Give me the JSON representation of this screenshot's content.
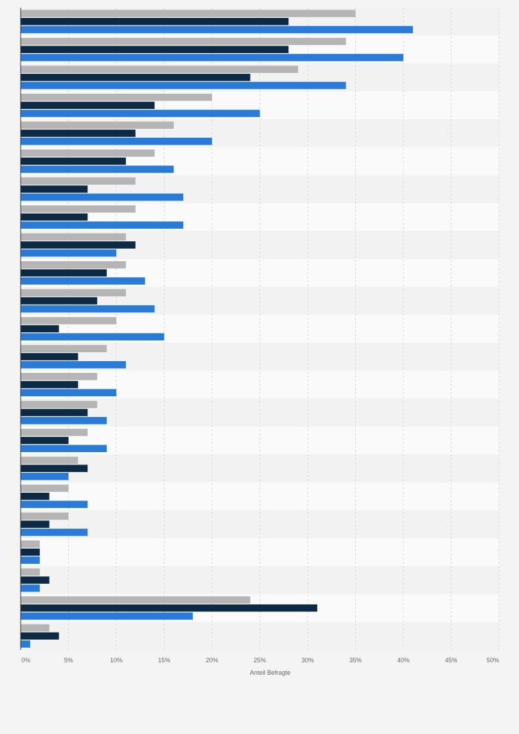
{
  "chart_data": {
    "type": "bar",
    "orientation": "horizontal",
    "xlabel": "Anteil Befragte",
    "xlim": [
      0,
      50
    ],
    "xticks": [
      "0%",
      "5%",
      "10%",
      "15%",
      "20%",
      "25%",
      "30%",
      "35%",
      "40%",
      "45%",
      "50%"
    ],
    "grid": true,
    "categories": [
      "",
      "",
      "",
      "",
      "",
      "",
      "",
      "",
      "",
      "",
      "",
      "",
      "",
      "",
      "",
      "",
      "",
      "",
      "",
      "",
      "",
      "",
      ""
    ],
    "series": [
      {
        "color": "#b5b5b5",
        "values": [
          35,
          34,
          29,
          20,
          16,
          14,
          12,
          12,
          11,
          11,
          11,
          10,
          9,
          8,
          8,
          7,
          6,
          5,
          5,
          2,
          2,
          24,
          3
        ]
      },
      {
        "color": "#0d2a45",
        "values": [
          28,
          28,
          24,
          14,
          12,
          11,
          7,
          7,
          12,
          9,
          8,
          4,
          6,
          6,
          7,
          5,
          7,
          3,
          3,
          2,
          3,
          31,
          4
        ]
      },
      {
        "color": "#2a7ad8",
        "values": [
          41,
          40,
          34,
          25,
          20,
          16,
          17,
          17,
          10,
          13,
          14,
          15,
          11,
          10,
          9,
          9,
          5,
          7,
          7,
          2,
          2,
          18,
          1
        ]
      }
    ]
  }
}
